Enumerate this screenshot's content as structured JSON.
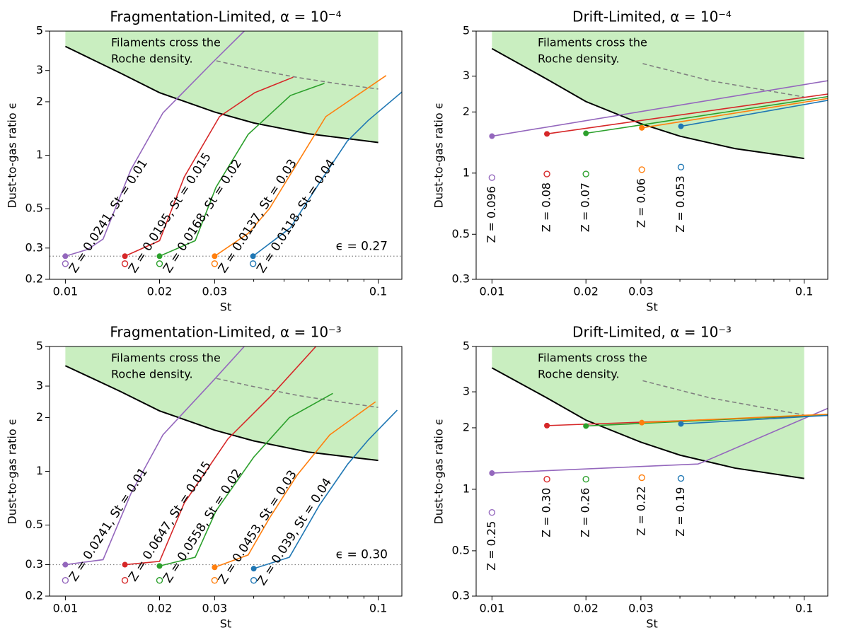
{
  "chart_data": [
    {
      "type": "line",
      "title": "Fragmentation-Limited, α = 10⁻⁴",
      "xlabel": "St",
      "ylabel": "Dust-to-gas ratio ϵ",
      "log_x": true,
      "log_y": true,
      "xlim": [
        0.0089,
        0.119
      ],
      "ylim": [
        0.2,
        5
      ],
      "xticks": [
        0.01,
        0.02,
        0.03,
        0.1
      ],
      "xminor_ticks": [
        0.04,
        0.05,
        0.06,
        0.07,
        0.08,
        0.09
      ],
      "yticks": [
        0.2,
        0.3,
        0.5,
        1,
        2,
        3,
        5
      ],
      "annotation": [
        "Filaments cross the",
        "Roche density."
      ],
      "shade_color": "#c9eec0",
      "threshold": {
        "value": 0.27,
        "label": "ϵ = 0.27",
        "color": "#808080"
      },
      "roche": {
        "color": "#000000",
        "x": [
          0.01,
          0.015,
          0.02,
          0.03,
          0.04,
          0.06,
          0.1
        ],
        "values": [
          4.1,
          2.9,
          2.25,
          1.75,
          1.52,
          1.32,
          1.18
        ]
      },
      "dashed": {
        "color": "#808080",
        "x": [
          0.0304,
          0.04,
          0.0553,
          0.075,
          0.1
        ],
        "values": [
          3.4,
          3.05,
          2.74,
          2.52,
          2.36
        ]
      },
      "series": [
        {
          "name": "Z = 0.0241, St = 0.01",
          "color": "#9467bd",
          "x": [
            0.01,
            0.0118,
            0.0132,
            0.0162,
            0.0205,
            0.0296,
            0.0373
          ],
          "values": [
            0.27,
            0.295,
            0.337,
            0.83,
            1.73,
            3.34,
            5
          ],
          "open_x": 0.01,
          "open_value": 0.245
        },
        {
          "name": "Z = 0.0195, St = 0.015",
          "color": "#d62728",
          "x": [
            0.0155,
            0.02,
            0.024,
            0.0311,
            0.0403,
            0.0535
          ],
          "values": [
            0.27,
            0.33,
            0.755,
            1.65,
            2.25,
            2.75
          ],
          "open_x": 0.0155,
          "open_value": 0.245
        },
        {
          "name": "Z = 0.0168, St = 0.02",
          "color": "#2ca02c",
          "x": [
            0.02,
            0.026,
            0.0303,
            0.0384,
            0.0524,
            0.0673
          ],
          "values": [
            0.27,
            0.33,
            0.66,
            1.31,
            2.17,
            2.54
          ],
          "open_x": 0.02,
          "open_value": 0.245
        },
        {
          "name": "Z = 0.0137, St = 0.03",
          "color": "#ff7f0e",
          "x": [
            0.03,
            0.0384,
            0.0449,
            0.0553,
            0.068,
            0.106
          ],
          "values": [
            0.27,
            0.363,
            0.5,
            0.91,
            1.65,
            2.81
          ],
          "open_x": 0.03,
          "open_value": 0.245
        },
        {
          "name": "Z = 0.0118, St = 0.04",
          "color": "#1f77b4",
          "x": [
            0.0398,
            0.0524,
            0.0646,
            0.0796,
            0.0929,
            0.119
          ],
          "values": [
            0.27,
            0.39,
            0.69,
            1.2,
            1.57,
            2.27
          ],
          "open_x": 0.0398,
          "open_value": 0.245
        }
      ]
    },
    {
      "type": "line",
      "title": "Drift-Limited, α = 10⁻⁴",
      "xlabel": "St",
      "ylabel": "Dust-to-gas ratio ϵ",
      "log_x": true,
      "log_y": true,
      "xlim": [
        0.0089,
        0.119
      ],
      "ylim": [
        0.3,
        5
      ],
      "xticks": [
        0.01,
        0.02,
        0.03,
        0.1
      ],
      "xminor_ticks": [
        0.04,
        0.05,
        0.06,
        0.07,
        0.08,
        0.09
      ],
      "yticks": [
        0.3,
        0.5,
        1,
        2,
        3,
        5
      ],
      "annotation": [
        "Filaments cross the",
        "Roche density."
      ],
      "shade_color": "#c9eec0",
      "roche": {
        "color": "#000000",
        "x": [
          0.01,
          0.015,
          0.02,
          0.03,
          0.04,
          0.06,
          0.1
        ],
        "values": [
          4.1,
          2.9,
          2.25,
          1.75,
          1.52,
          1.32,
          1.18
        ]
      },
      "dashed": {
        "color": "#808080",
        "x": [
          0.0304,
          0.05,
          0.1
        ],
        "values": [
          3.46,
          2.85,
          2.37
        ]
      },
      "series": [
        {
          "name": "Z = 0.096",
          "color": "#9467bd",
          "x": [
            0.01,
            0.119
          ],
          "values": [
            1.52,
            2.85
          ],
          "open_x": 0.01,
          "open_value": 0.95
        },
        {
          "name": "Z = 0.08",
          "color": "#d62728",
          "x": [
            0.015,
            0.119
          ],
          "values": [
            1.56,
            2.45
          ],
          "open_x": 0.015,
          "open_value": 0.99
        },
        {
          "name": "Z = 0.07",
          "color": "#2ca02c",
          "x": [
            0.02,
            0.119
          ],
          "values": [
            1.57,
            2.38
          ],
          "open_x": 0.02,
          "open_value": 0.99
        },
        {
          "name": "Z = 0.06",
          "color": "#ff7f0e",
          "x": [
            0.0302,
            0.119
          ],
          "values": [
            1.67,
            2.33
          ],
          "open_x": 0.0302,
          "open_value": 1.04
        },
        {
          "name": "Z = 0.053",
          "color": "#1f77b4",
          "x": [
            0.0403,
            0.119
          ],
          "values": [
            1.7,
            2.28
          ],
          "open_x": 0.0403,
          "open_value": 1.07
        }
      ]
    },
    {
      "type": "line",
      "title": "Fragmentation-Limited, α = 10⁻³",
      "xlabel": "St",
      "ylabel": "Dust-to-gas ratio ϵ",
      "log_x": true,
      "log_y": true,
      "xlim": [
        0.0089,
        0.119
      ],
      "ylim": [
        0.2,
        5
      ],
      "xticks": [
        0.01,
        0.02,
        0.03,
        0.1
      ],
      "xminor_ticks": [
        0.04,
        0.05,
        0.06,
        0.07,
        0.08,
        0.09
      ],
      "yticks": [
        0.2,
        0.3,
        0.5,
        1,
        2,
        3,
        5
      ],
      "annotation": [
        "Filaments cross the",
        "Roche density."
      ],
      "shade_color": "#c9eec0",
      "threshold": {
        "value": 0.3,
        "label": "ϵ = 0.30",
        "color": "#808080"
      },
      "roche": {
        "color": "#000000",
        "x": [
          0.01,
          0.015,
          0.02,
          0.03,
          0.04,
          0.06,
          0.1
        ],
        "values": [
          3.9,
          2.8,
          2.18,
          1.7,
          1.48,
          1.28,
          1.15
        ]
      },
      "dashed": {
        "color": "#808080",
        "x": [
          0.0304,
          0.04,
          0.0553,
          0.075,
          0.1
        ],
        "values": [
          3.31,
          2.98,
          2.66,
          2.45,
          2.28
        ]
      },
      "series": [
        {
          "name": "Z = 0.0241, St = 0.01",
          "color": "#9467bd",
          "x": [
            0.01,
            0.0132,
            0.0162,
            0.0205,
            0.0296,
            0.0373
          ],
          "values": [
            0.3,
            0.32,
            0.75,
            1.6,
            3.2,
            5
          ],
          "open_x": 0.01,
          "open_value": 0.245
        },
        {
          "name": "Z = 0.0647, St = 0.015",
          "color": "#d62728",
          "x": [
            0.0155,
            0.02,
            0.024,
            0.0331,
            0.0453,
            0.0632
          ],
          "values": [
            0.3,
            0.313,
            0.665,
            1.52,
            2.63,
            5
          ],
          "open_x": 0.0155,
          "open_value": 0.245
        },
        {
          "name": "Z = 0.0558, St = 0.02",
          "color": "#2ca02c",
          "x": [
            0.02,
            0.026,
            0.0303,
            0.04,
            0.052,
            0.0716
          ],
          "values": [
            0.295,
            0.33,
            0.6,
            1.2,
            2.0,
            2.73
          ],
          "open_x": 0.02,
          "open_value": 0.245
        },
        {
          "name": "Z = 0.0453, St = 0.03",
          "color": "#ff7f0e",
          "x": [
            0.03,
            0.0384,
            0.045,
            0.055,
            0.07,
            0.098
          ],
          "values": [
            0.29,
            0.34,
            0.55,
            0.95,
            1.6,
            2.45
          ],
          "open_x": 0.03,
          "open_value": 0.245
        },
        {
          "name": "Z = 0.039, St = 0.04",
          "color": "#1f77b4",
          "x": [
            0.04,
            0.052,
            0.065,
            0.08,
            0.093,
            0.115
          ],
          "values": [
            0.285,
            0.33,
            0.65,
            1.1,
            1.5,
            2.2
          ],
          "open_x": 0.04,
          "open_value": 0.245
        }
      ]
    },
    {
      "type": "line",
      "title": "Drift-Limited, α = 10⁻³",
      "xlabel": "St",
      "ylabel": "Dust-to-gas ratio ϵ",
      "log_x": true,
      "log_y": true,
      "xlim": [
        0.0089,
        0.119
      ],
      "ylim": [
        0.3,
        5
      ],
      "xticks": [
        0.01,
        0.02,
        0.03,
        0.1
      ],
      "xminor_ticks": [
        0.04,
        0.05,
        0.06,
        0.07,
        0.08,
        0.09
      ],
      "yticks": [
        0.3,
        0.5,
        1,
        2,
        3,
        5
      ],
      "annotation": [
        "Filaments cross the",
        "Roche density."
      ],
      "shade_color": "#c9eec0",
      "roche": {
        "color": "#000000",
        "x": [
          0.01,
          0.015,
          0.02,
          0.03,
          0.04,
          0.06,
          0.1
        ],
        "values": [
          3.93,
          2.8,
          2.18,
          1.7,
          1.47,
          1.27,
          1.13
        ]
      },
      "dashed": {
        "color": "#808080",
        "x": [
          0.0304,
          0.05,
          0.1
        ],
        "values": [
          3.4,
          2.8,
          2.31
        ]
      },
      "series": [
        {
          "name": "Z = 0.25",
          "color": "#9467bd",
          "x": [
            0.01,
            0.0457,
            0.0475,
            0.119
          ],
          "values": [
            1.2,
            1.33,
            1.36,
            2.49
          ],
          "open_x": 0.01,
          "open_value": 0.77
        },
        {
          "name": "Z = 0.30",
          "color": "#d62728",
          "x": [
            0.015,
            0.119
          ],
          "values": [
            2.05,
            2.3
          ],
          "open_x": 0.015,
          "open_value": 1.12
        },
        {
          "name": "Z = 0.26",
          "color": "#2ca02c",
          "x": [
            0.02,
            0.119
          ],
          "values": [
            2.04,
            2.32
          ],
          "open_x": 0.02,
          "open_value": 1.12
        },
        {
          "name": "Z = 0.22",
          "color": "#ff7f0e",
          "x": [
            0.0302,
            0.119
          ],
          "values": [
            2.12,
            2.33
          ],
          "open_x": 0.0302,
          "open_value": 1.14
        },
        {
          "name": "Z = 0.19",
          "color": "#1f77b4",
          "x": [
            0.0403,
            0.119
          ],
          "values": [
            2.09,
            2.3
          ],
          "open_x": 0.0403,
          "open_value": 1.13
        }
      ]
    }
  ]
}
